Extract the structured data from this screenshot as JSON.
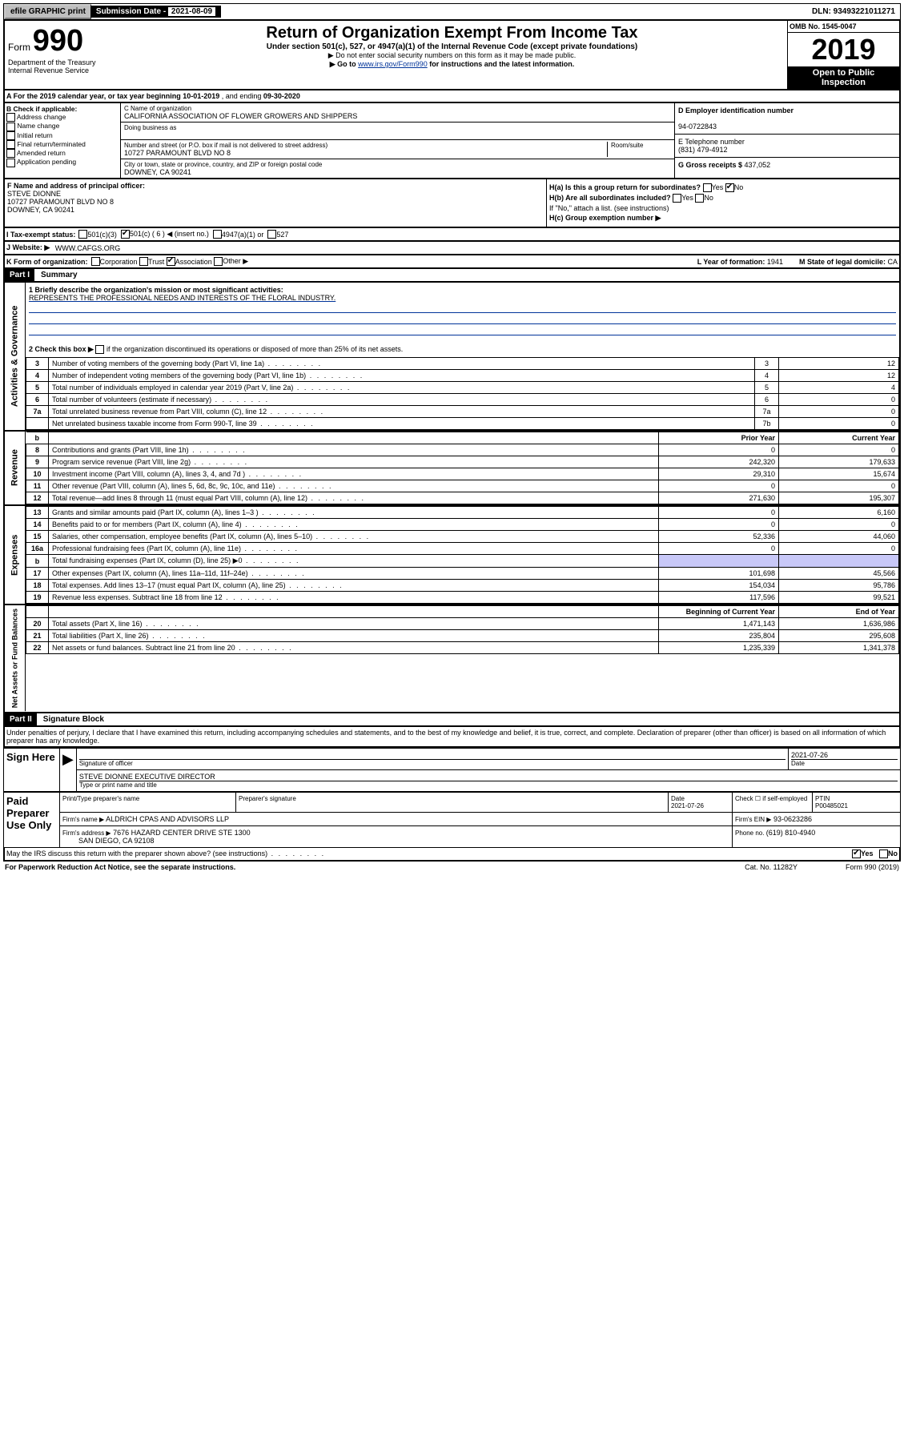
{
  "topbar": {
    "efile": "efile GRAPHIC print",
    "sub_label": "Submission Date - ",
    "sub_date": "2021-08-09",
    "dln": "DLN: 93493221011271"
  },
  "header": {
    "form_word": "Form",
    "form_no": "990",
    "dept1": "Department of the Treasury",
    "dept2": "Internal Revenue Service",
    "title": "Return of Organization Exempt From Income Tax",
    "sub": "Under section 501(c), 527, or 4947(a)(1) of the Internal Revenue Code (except private foundations)",
    "arrow1": "▶ Do not enter social security numbers on this form as it may be made public.",
    "arrow2_pre": "▶ Go to ",
    "arrow2_link": "www.irs.gov/Form990",
    "arrow2_post": " for instructions and the latest information.",
    "omb": "OMB No. 1545-0047",
    "year": "2019",
    "open": "Open to Public Inspection"
  },
  "rowA": {
    "text_pre": "A For the 2019 calendar year, or tax year beginning ",
    "begin": "10-01-2019",
    "mid": " , and ending ",
    "end": "09-30-2020"
  },
  "colB": {
    "hdr": "B Check if applicable:",
    "items": [
      "Address change",
      "Name change",
      "Initial return",
      "Final return/terminated",
      "Amended return",
      "Application pending"
    ]
  },
  "colC": {
    "name_lbl": "C Name of organization",
    "name": "CALIFORNIA ASSOCIATION OF FLOWER GROWERS AND SHIPPERS",
    "dba_lbl": "Doing business as",
    "addr_lbl": "Number and street (or P.O. box if mail is not delivered to street address)",
    "room_lbl": "Room/suite",
    "addr": "10727 PARAMOUNT BLVD NO 8",
    "city_lbl": "City or town, state or province, country, and ZIP or foreign postal code",
    "city": "DOWNEY, CA  90241"
  },
  "colD": {
    "ein_lbl": "D Employer identification number",
    "ein": "94-0722843",
    "tel_lbl": "E Telephone number",
    "tel": "(831) 479-4912",
    "gross_lbl": "G Gross receipts $ ",
    "gross": "437,052"
  },
  "colF": {
    "lbl": "F Name and address of principal officer:",
    "name": "STEVE DIONNE",
    "addr1": "10727 PARAMOUNT BLVD NO 8",
    "addr2": "DOWNEY, CA  90241"
  },
  "colH": {
    "ha_lbl": "H(a)  Is this a group return for subordinates?",
    "hb_lbl": "H(b)  Are all subordinates included?",
    "hb_note": "If \"No,\" attach a list. (see instructions)",
    "hc_lbl": "H(c)  Group exemption number ▶",
    "yes": "Yes",
    "no": "No"
  },
  "rowI": {
    "lbl": "I  Tax-exempt status:",
    "o1": "501(c)(3)",
    "o2": "501(c) ( 6 ) ◀ (insert no.)",
    "o3": "4947(a)(1) or",
    "o4": "527"
  },
  "rowJ": {
    "lbl": "J  Website: ▶",
    "val": "WWW.CAFGS.ORG"
  },
  "rowK": {
    "lbl": "K Form of organization:",
    "opts": [
      "Corporation",
      "Trust",
      "Association",
      "Other ▶"
    ],
    "L_lbl": "L Year of formation: ",
    "L_val": "1941",
    "M_lbl": "M State of legal domicile: ",
    "M_val": "CA"
  },
  "part1": {
    "hdr": "Part I",
    "title": "Summary"
  },
  "mission": {
    "line1_lbl": "1  Briefly describe the organization's mission or most significant activities:",
    "line1": "REPRESENTS THE PROFESSIONAL NEEDS AND INTERESTS OF THE FLORAL INDUSTRY.",
    "line2_lbl": "2  Check this box ▶",
    "line2_txt": "if the organization discontinued its operations or disposed of more than 25% of its net assets."
  },
  "gov_rows": [
    {
      "n": "3",
      "d": "Number of voting members of the governing body (Part VI, line 1a)",
      "b": "3",
      "v": "12"
    },
    {
      "n": "4",
      "d": "Number of independent voting members of the governing body (Part VI, line 1b)",
      "b": "4",
      "v": "12"
    },
    {
      "n": "5",
      "d": "Total number of individuals employed in calendar year 2019 (Part V, line 2a)",
      "b": "5",
      "v": "4"
    },
    {
      "n": "6",
      "d": "Total number of volunteers (estimate if necessary)",
      "b": "6",
      "v": "0"
    },
    {
      "n": "7a",
      "d": "Total unrelated business revenue from Part VIII, column (C), line 12",
      "b": "7a",
      "v": "0"
    },
    {
      "n": "",
      "d": "Net unrelated business taxable income from Form 990-T, line 39",
      "b": "7b",
      "v": "0"
    }
  ],
  "two_col_hdr": {
    "prior": "Prior Year",
    "curr": "Current Year"
  },
  "rev_rows": [
    {
      "n": "8",
      "d": "Contributions and grants (Part VIII, line 1h)",
      "p": "0",
      "c": "0"
    },
    {
      "n": "9",
      "d": "Program service revenue (Part VIII, line 2g)",
      "p": "242,320",
      "c": "179,633"
    },
    {
      "n": "10",
      "d": "Investment income (Part VIII, column (A), lines 3, 4, and 7d )",
      "p": "29,310",
      "c": "15,674"
    },
    {
      "n": "11",
      "d": "Other revenue (Part VIII, column (A), lines 5, 6d, 8c, 9c, 10c, and 11e)",
      "p": "0",
      "c": "0"
    },
    {
      "n": "12",
      "d": "Total revenue—add lines 8 through 11 (must equal Part VIII, column (A), line 12)",
      "p": "271,630",
      "c": "195,307"
    }
  ],
  "exp_rows": [
    {
      "n": "13",
      "d": "Grants and similar amounts paid (Part IX, column (A), lines 1–3 )",
      "p": "0",
      "c": "6,160"
    },
    {
      "n": "14",
      "d": "Benefits paid to or for members (Part IX, column (A), line 4)",
      "p": "0",
      "c": "0"
    },
    {
      "n": "15",
      "d": "Salaries, other compensation, employee benefits (Part IX, column (A), lines 5–10)",
      "p": "52,336",
      "c": "44,060"
    },
    {
      "n": "16a",
      "d": "Professional fundraising fees (Part IX, column (A), line 11e)",
      "p": "0",
      "c": "0"
    },
    {
      "n": "b",
      "d": "Total fundraising expenses (Part IX, column (D), line 25) ▶0",
      "p": "",
      "c": "",
      "shade": true
    },
    {
      "n": "17",
      "d": "Other expenses (Part IX, column (A), lines 11a–11d, 11f–24e)",
      "p": "101,698",
      "c": "45,566"
    },
    {
      "n": "18",
      "d": "Total expenses. Add lines 13–17 (must equal Part IX, column (A), line 25)",
      "p": "154,034",
      "c": "95,786"
    },
    {
      "n": "19",
      "d": "Revenue less expenses. Subtract line 18 from line 12",
      "p": "117,596",
      "c": "99,521"
    }
  ],
  "net_hdr": {
    "b": "Beginning of Current Year",
    "e": "End of Year"
  },
  "net_rows": [
    {
      "n": "20",
      "d": "Total assets (Part X, line 16)",
      "p": "1,471,143",
      "c": "1,636,986"
    },
    {
      "n": "21",
      "d": "Total liabilities (Part X, line 26)",
      "p": "235,804",
      "c": "295,608"
    },
    {
      "n": "22",
      "d": "Net assets or fund balances. Subtract line 21 from line 20",
      "p": "1,235,339",
      "c": "1,341,378"
    }
  ],
  "side_tabs": {
    "gov": "Activities & Governance",
    "rev": "Revenue",
    "exp": "Expenses",
    "net": "Net Assets or Fund Balances"
  },
  "part2": {
    "hdr": "Part II",
    "title": "Signature Block",
    "perjury": "Under penalties of perjury, I declare that I have examined this return, including accompanying schedules and statements, and to the best of my knowledge and belief, it is true, correct, and complete. Declaration of preparer (other than officer) is based on all information of which preparer has any knowledge."
  },
  "sign": {
    "here": "Sign Here",
    "sig_lbl": "Signature of officer",
    "date": "2021-07-26",
    "date_lbl": "Date",
    "name": "STEVE DIONNE  EXECUTIVE DIRECTOR",
    "name_lbl": "Type or print name and title"
  },
  "paid": {
    "title": "Paid Preparer Use Only",
    "col1": "Print/Type preparer's name",
    "col2": "Preparer's signature",
    "col3": "Date",
    "date": "2021-07-26",
    "check_lbl": "Check ☐ if self-employed",
    "ptin_lbl": "PTIN",
    "ptin": "P00485021",
    "firm_name_lbl": "Firm's name    ▶",
    "firm_name": "ALDRICH CPAS AND ADVISORS LLP",
    "firm_ein_lbl": "Firm's EIN ▶",
    "firm_ein": "93-0623286",
    "firm_addr_lbl": "Firm's address ▶",
    "firm_addr1": "7676 HAZARD CENTER DRIVE STE 1300",
    "firm_addr2": "SAN DIEGO, CA  92108",
    "phone_lbl": "Phone no. ",
    "phone": "(619) 810-4940"
  },
  "discuss": {
    "q": "May the IRS discuss this return with the preparer shown above? (see instructions)",
    "yes": "Yes",
    "no": "No"
  },
  "footer": {
    "left": "For Paperwork Reduction Act Notice, see the separate instructions.",
    "mid": "Cat. No. 11282Y",
    "right": "Form 990 (2019)"
  }
}
